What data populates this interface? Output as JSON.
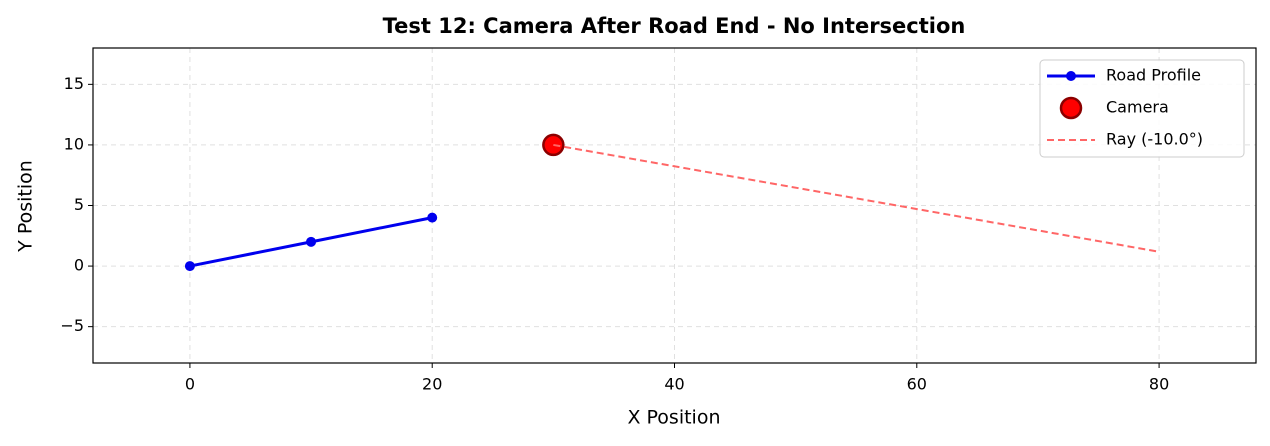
{
  "chart_data": {
    "type": "line",
    "title": "Test 12: Camera After Road End - No Intersection",
    "xlabel": "X Position",
    "ylabel": "Y Position",
    "xlim": [
      -8,
      88
    ],
    "ylim": [
      -8,
      18
    ],
    "xticks": [
      0,
      20,
      40,
      60,
      80
    ],
    "yticks": [
      {
        "value": -5,
        "label": "−5"
      },
      0,
      5,
      10,
      15
    ],
    "grid": true,
    "legend": "upper right",
    "series": [
      {
        "name": "Road Profile",
        "color": "#0000ee",
        "linestyle": "solid",
        "marker": "small",
        "x": [
          0,
          10,
          20
        ],
        "values": [
          0,
          2,
          4
        ]
      },
      {
        "name": "Camera",
        "color": "#ff0000",
        "linestyle": "none",
        "marker": "large",
        "x": [
          30
        ],
        "values": [
          10
        ]
      },
      {
        "name": "Ray (-10.0°)",
        "color": "#ff6666",
        "linestyle": "dashed",
        "marker": "none",
        "x": [
          30,
          80
        ],
        "values": [
          10,
          1.18
        ]
      }
    ]
  }
}
